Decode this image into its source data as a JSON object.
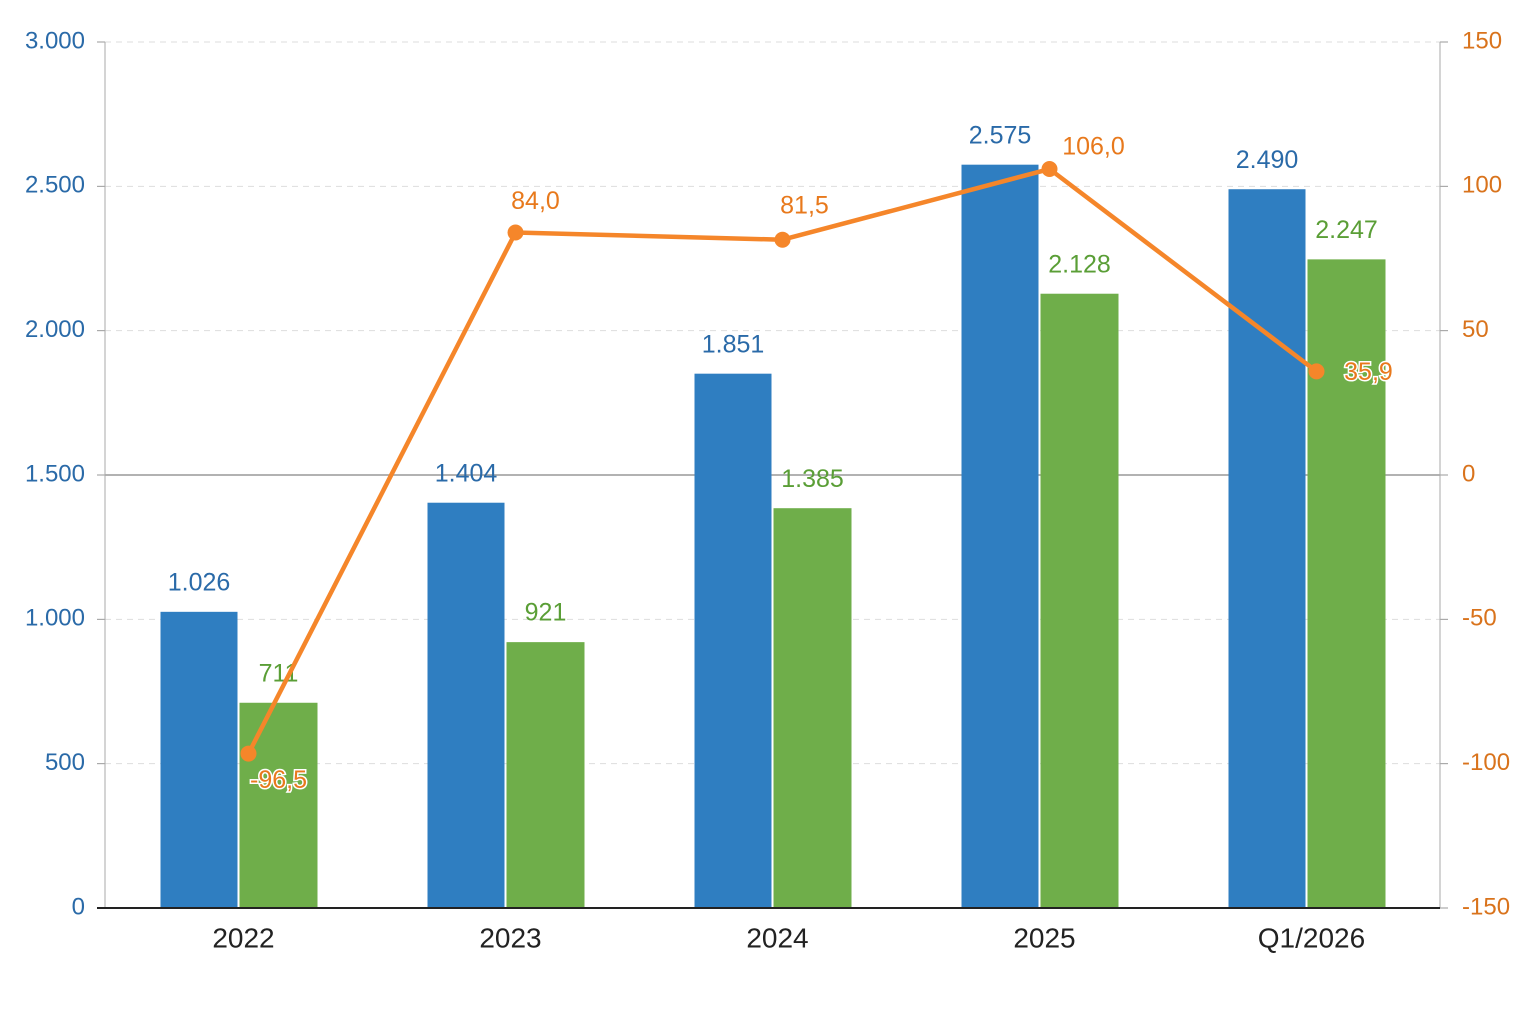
{
  "chart_data": {
    "type": "bar",
    "categories": [
      "2022",
      "2023",
      "2024",
      "2025",
      "Q1/2026"
    ],
    "series": [
      {
        "type": "bar",
        "color": "#2f7ec1",
        "label_color": "#2a6aa8",
        "values": [
          1026,
          1404,
          1851,
          2575,
          2490
        ],
        "value_labels": [
          "1.026",
          "1.404",
          "1.851",
          "2.575",
          "2.490"
        ]
      },
      {
        "type": "bar",
        "color": "#6fae4a",
        "label_color": "#5a9e36",
        "values": [
          711,
          921,
          1385,
          2128,
          2247
        ],
        "value_labels": [
          "711",
          "921",
          "1.385",
          "2.128",
          "2.247"
        ]
      },
      {
        "type": "line",
        "axis": "y2",
        "color": "#f5862a",
        "label_color": "#e8791c",
        "values": [
          -96.5,
          84.0,
          81.5,
          106.0,
          35.9
        ],
        "value_labels": [
          "-96,5",
          "84,0",
          "81,5",
          "106,0",
          "35,9"
        ]
      }
    ],
    "ylim": [
      0,
      3000
    ],
    "yticks": [
      0,
      500,
      {
        "value": 1000,
        "label": "1.000"
      },
      {
        "value": 1500,
        "label": "1.500"
      },
      {
        "value": 2000,
        "label": "2.000"
      },
      {
        "value": 2500,
        "label": "2.500"
      },
      {
        "value": 3000,
        "label": "3.000"
      }
    ],
    "y2lim": [
      -150,
      150
    ],
    "y2ticks": [
      -150,
      -100,
      -50,
      0,
      50,
      100,
      150
    ],
    "grid": true
  }
}
